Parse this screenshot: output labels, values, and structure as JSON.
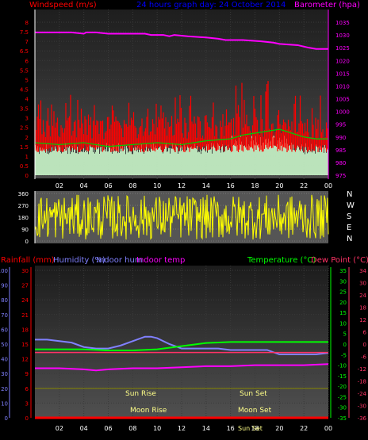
{
  "header": {
    "left_label": "Windspeed (m/s)",
    "center_title": "24 hours graph day:  24 October 2014",
    "right_label": "Barometer (hpa)"
  },
  "colors": {
    "wind": "#ff0000",
    "wind_avg": "#00cc00",
    "gust_fill": "#d0ffd0",
    "barometer": "#ff00ff",
    "direction": "#ffff00",
    "humidity": "#8080ff",
    "temperature": "#00ff00",
    "dewpoint": "#ff3366",
    "indoor_temp": "#ff00ff",
    "rain": "#ff0000"
  },
  "legend": {
    "rainfall": "Rainfall (mm)",
    "humidity": "Humidity (%)",
    "indoor_hum": "Indoor hum",
    "indoor_temp": "Indoor temp",
    "temperature": "Temperature (°C)",
    "dewpoint": "Dew Point (°C)"
  },
  "annotations": {
    "sun_rise": "Sun Rise",
    "sun_set": "Sun Set",
    "moon_rise": "Moon Rise",
    "moon_set": "Moon Set",
    "sun_set_bottom": "Sun Set"
  },
  "compass": [
    "N",
    "W",
    "S",
    "E",
    "N"
  ],
  "chart_data": [
    {
      "type": "line",
      "panel": "wind_barometer",
      "x_ticks": [
        "02",
        "04",
        "06",
        "08",
        "10",
        "12",
        "14",
        "16",
        "18",
        "20",
        "22",
        "00"
      ],
      "wind_ylim": [
        0,
        8
      ],
      "wind_ticks": [
        "0",
        "0.5",
        "1",
        "1.5",
        "2",
        "2.5",
        "3",
        "3.5",
        "4",
        "4.5",
        "5",
        "5.5",
        "6",
        "6.5",
        "7",
        "7.5",
        "8"
      ],
      "baro_ylim": [
        975,
        1035
      ],
      "baro_ticks": [
        "975",
        "980",
        "985",
        "990",
        "995",
        "1000",
        "1005",
        "1010",
        "1015",
        "1020",
        "1025",
        "1030",
        "1035"
      ],
      "barometer": {
        "x": [
          0,
          3,
          4,
          4.2,
          5,
          6,
          9,
          9.5,
          10.5,
          11,
          11.4,
          12.5,
          14,
          15,
          15.6,
          17,
          18.5,
          19.5,
          20,
          21.5,
          22.4,
          23,
          24
        ],
        "y": [
          1031,
          1031,
          1030.5,
          1031,
          1031,
          1030.5,
          1030.5,
          1030,
          1030,
          1029.5,
          1030,
          1029.5,
          1029,
          1028.5,
          1028,
          1028,
          1027.5,
          1027,
          1026.5,
          1026,
          1025,
          1024.5,
          1024.5
        ]
      },
      "wind_avg": {
        "x": [
          0,
          2,
          4,
          6,
          8,
          10,
          12,
          14,
          16,
          17,
          18,
          19,
          20,
          21,
          22,
          23,
          24
        ],
        "y": [
          1.7,
          1.6,
          1.7,
          1.5,
          1.6,
          1.7,
          1.6,
          1.8,
          1.9,
          2.1,
          2.2,
          2.3,
          2.4,
          2.2,
          2.0,
          1.9,
          1.9
        ]
      }
    },
    {
      "type": "scatter",
      "panel": "wind_direction",
      "ylim": [
        0,
        360
      ],
      "y_ticks": [
        "0",
        "90",
        "180",
        "270",
        "360"
      ]
    },
    {
      "type": "line",
      "panel": "temperature_humidity",
      "x_ticks": [
        "02",
        "04",
        "06",
        "08",
        "10",
        "12",
        "14",
        "16",
        "18",
        "20",
        "22",
        "00"
      ],
      "humidity_ylim": [
        0,
        100
      ],
      "humidity_ticks": [
        "0",
        "10",
        "20",
        "30",
        "40",
        "50",
        "60",
        "70",
        "80",
        "90",
        "100"
      ],
      "rain_ylim": [
        0,
        30
      ],
      "rain_ticks": [
        "0",
        "3",
        "6",
        "9",
        "12",
        "15",
        "18",
        "21",
        "24",
        "27",
        "30"
      ],
      "temp_ylim": [
        -35,
        35
      ],
      "temp_ticks": [
        "-35",
        "-30",
        "-25",
        "-20",
        "-15",
        "-10",
        "-5",
        "0",
        "5",
        "10",
        "15",
        "20",
        "25",
        "30",
        "35"
      ],
      "dew_ticks": [
        "-36",
        "-30",
        "-24",
        "-18",
        "-12",
        "-6",
        "0",
        "6",
        "12",
        "18",
        "24",
        "30",
        "34"
      ],
      "humidity": {
        "name": "Humidity",
        "x": [
          0,
          1,
          2,
          3,
          4,
          5,
          6,
          7,
          8,
          9,
          9.5,
          10,
          11,
          12,
          13,
          14,
          15,
          16,
          17,
          18,
          19,
          20,
          21,
          22,
          23,
          24
        ],
        "y": [
          53,
          53,
          52,
          51,
          48,
          47,
          47,
          49,
          52,
          55,
          55,
          54,
          50,
          47,
          47,
          47,
          47,
          46,
          46,
          46,
          46,
          43,
          43,
          43,
          43,
          44
        ]
      },
      "temperature": {
        "name": "Temperature",
        "x": [
          0,
          2,
          4,
          6,
          8,
          10,
          12,
          14,
          16,
          18,
          20,
          22,
          24
        ],
        "y": [
          -2.5,
          -2.5,
          -2.5,
          -3,
          -3,
          -2.5,
          -1,
          0.5,
          1,
          1,
          1,
          1,
          1
        ]
      },
      "dewpoint": {
        "name": "Dew Point",
        "x": [
          0,
          3,
          5,
          7,
          9,
          12,
          15,
          18,
          21,
          24
        ],
        "y": [
          -4,
          -4,
          -4,
          -4,
          -4,
          -4,
          -4,
          -4,
          -4,
          -4
        ]
      },
      "indoor_temp": {
        "x": [
          0,
          2,
          4,
          5,
          6,
          8,
          10,
          12,
          14,
          16,
          18,
          20,
          22,
          24
        ],
        "y": [
          -11.5,
          -11.5,
          -12,
          -12.5,
          -12,
          -11.5,
          -11.5,
          -11,
          -10.5,
          -10.5,
          -10,
          -10,
          -10,
          -9.5
        ]
      },
      "rain": {
        "x": [
          0,
          24
        ],
        "y": [
          0,
          0
        ]
      }
    }
  ]
}
